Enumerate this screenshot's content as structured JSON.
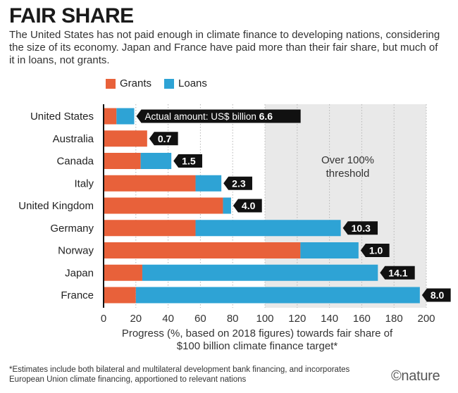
{
  "header": {
    "title": "FAIR SHARE",
    "subtitle": "The United States has not paid enough in climate finance to developing nations, considering the size of its economy. Japan and France have paid more than their fair share, but much of it in loans, not grants."
  },
  "legend": {
    "items": [
      {
        "label": "Grants",
        "color": "#e8613a"
      },
      {
        "label": "Loans",
        "color": "#2ea3d5"
      }
    ]
  },
  "chart_data": {
    "type": "bar",
    "orientation": "horizontal",
    "stacked": true,
    "categories": [
      "United States",
      "Australia",
      "Canada",
      "Italy",
      "United Kingdom",
      "Germany",
      "Norway",
      "Japan",
      "France"
    ],
    "series": [
      {
        "name": "Grants",
        "color": "#e8613a",
        "values": [
          8,
          27,
          23,
          57,
          74,
          57,
          122,
          24,
          20
        ]
      },
      {
        "name": "Loans",
        "color": "#2ea3d5",
        "values": [
          11,
          0,
          19,
          16,
          5,
          90,
          36,
          146,
          176
        ]
      }
    ],
    "data_labels": [
      "6.6",
      "0.7",
      "1.5",
      "2.3",
      "4.0",
      "10.3",
      "1.0",
      "14.1",
      "8.0"
    ],
    "first_label_prefix": "Actual amount: US$ billion ",
    "xlim": [
      0,
      200
    ],
    "xticks": [
      0,
      20,
      40,
      60,
      80,
      100,
      120,
      140,
      160,
      180,
      200
    ],
    "xlabel": "Progress (%, based on 2018 figures) towards fair share of $100 billion climate finance target*",
    "threshold": {
      "value": 100,
      "label_line1": "Over 100%",
      "label_line2": "threshold"
    }
  },
  "footnote": "*Estimates include both bilateral and multilateral development bank financing, and incorporates European Union climate financing, apportioned to relevant nations",
  "brand": "©nature"
}
